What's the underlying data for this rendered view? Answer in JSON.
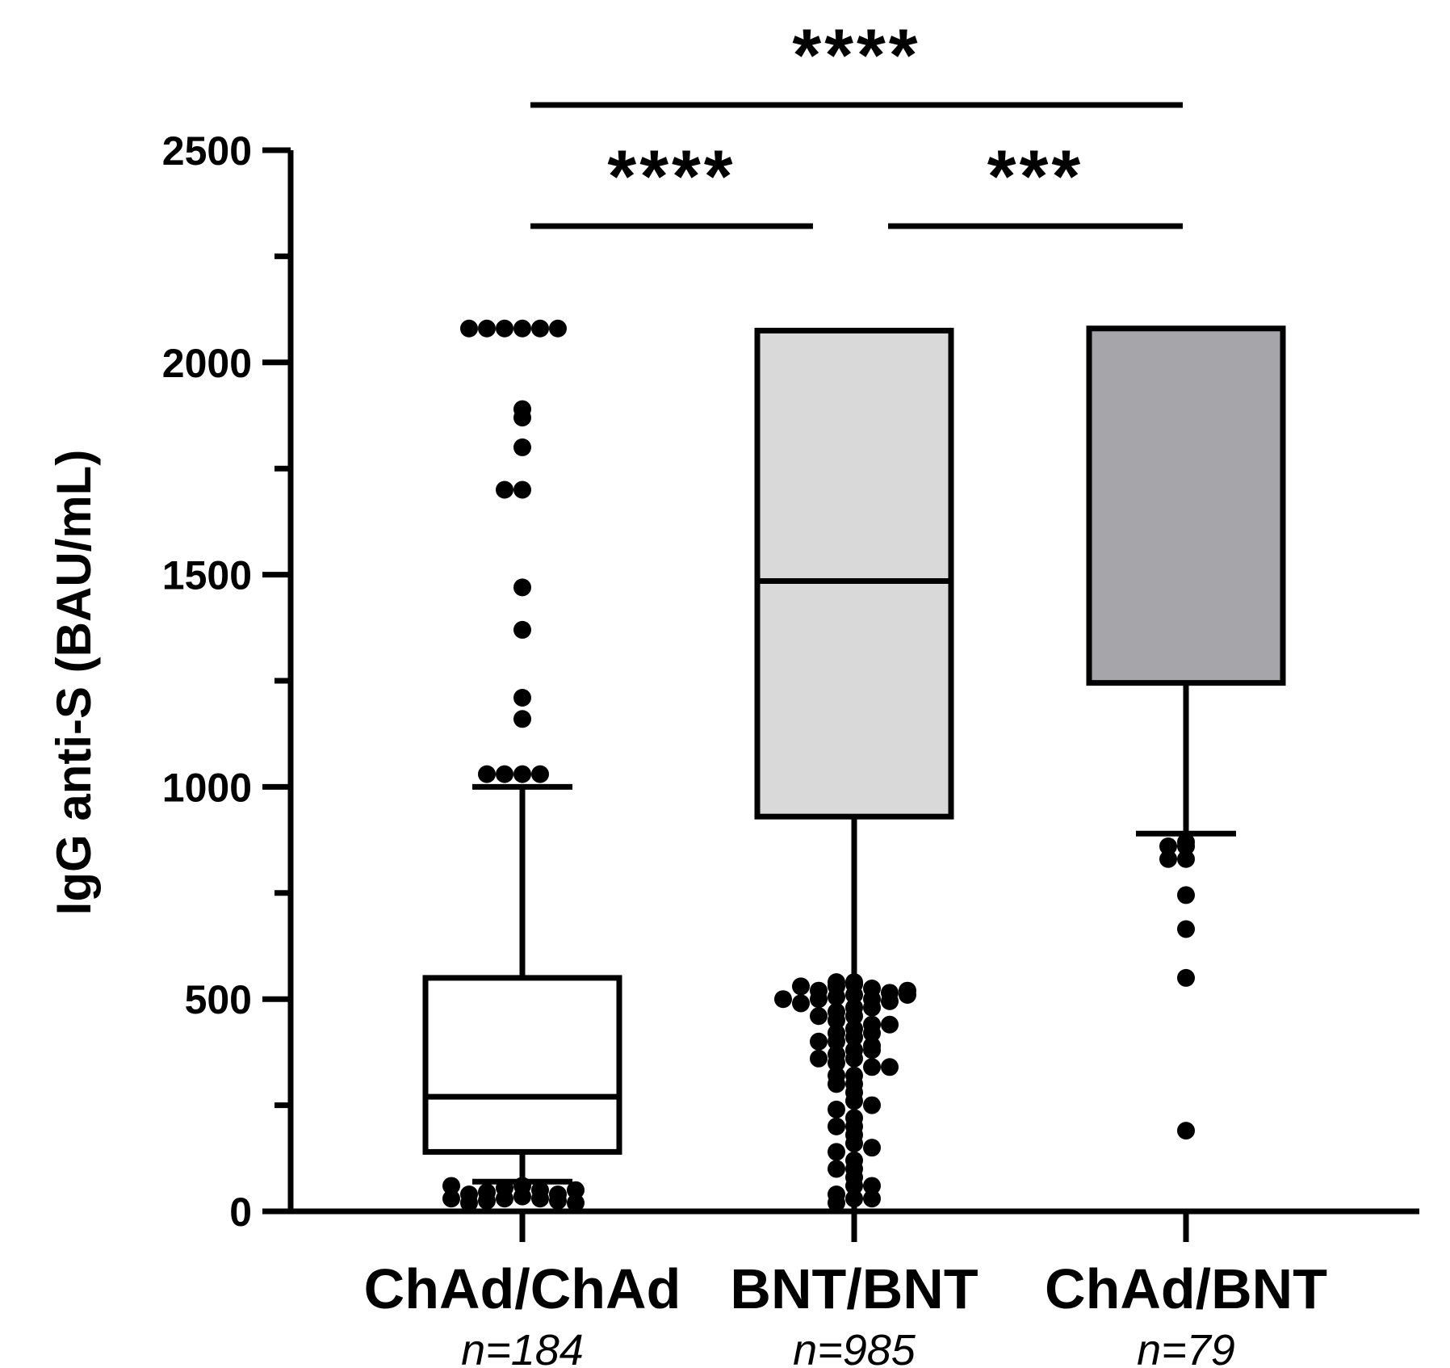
{
  "chart_data": {
    "type": "box",
    "ylabel": "IgG anti-S (BAU/mL)",
    "xlabel": "",
    "ylim": [
      0,
      2500
    ],
    "yticks_major": [
      0,
      500,
      1000,
      1500,
      2000,
      2500
    ],
    "yticks_minor": [
      250,
      750,
      1250,
      1750,
      2250
    ],
    "categories": [
      "ChAd/ChAd",
      "BNT/BNT",
      "ChAd/BNT"
    ],
    "sample_sizes": [
      "n=184",
      "n=985",
      "n=79"
    ],
    "boxes": [
      {
        "name": "ChAd/ChAd",
        "fill": "#ffffff",
        "whisker_low": 70,
        "q1": 140,
        "median": 270,
        "q3": 550,
        "whisker_high": 1000,
        "outliers": [
          2080,
          2080,
          2080,
          2080,
          2080,
          2080,
          1890,
          1870,
          1800,
          1700,
          1700,
          1470,
          1370,
          1210,
          1160,
          1030,
          1030,
          1030,
          1030,
          60,
          55,
          50,
          45,
          40,
          35,
          30,
          30,
          25,
          25,
          20,
          20,
          30,
          40,
          50,
          60
        ]
      },
      {
        "name": "BNT/BNT",
        "fill": "#d9d9d9",
        "whisker_low": 0,
        "q1": 930,
        "median": 1485,
        "q3": 2075,
        "whisker_high": 2075,
        "outliers": [
          540,
          540,
          535,
          530,
          525,
          520,
          515,
          510,
          505,
          500,
          500,
          495,
          490,
          480,
          470,
          460,
          450,
          440,
          430,
          420,
          410,
          400,
          390,
          380,
          370,
          360,
          350,
          340,
          320,
          300,
          280,
          260,
          240,
          220,
          200,
          180,
          160,
          140,
          120,
          100,
          80,
          60,
          40,
          30,
          20,
          530,
          520,
          510,
          500,
          480,
          460,
          440,
          420,
          400,
          380,
          360,
          340,
          320,
          300,
          250,
          200,
          150,
          100,
          60,
          30
        ]
      },
      {
        "name": "ChAd/BNT",
        "fill": "#a6a5a9",
        "whisker_low": 890,
        "q1": 1245,
        "median": 2080,
        "q3": 2080,
        "whisker_high": 2080,
        "outliers": [
          870,
          860,
          860,
          830,
          830,
          745,
          665,
          550,
          190
        ]
      }
    ],
    "significance": [
      {
        "from": 0,
        "to": 1,
        "label": "****"
      },
      {
        "from": 1,
        "to": 2,
        "label": "***"
      },
      {
        "from": 0,
        "to": 2,
        "label": "****"
      }
    ],
    "grid": false,
    "legend": "none"
  }
}
